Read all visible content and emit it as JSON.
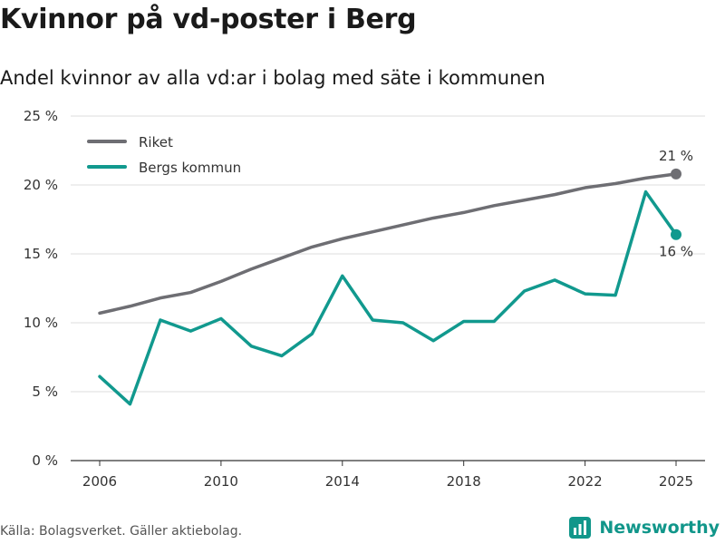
{
  "header": {
    "title": "Kvinnor på vd-poster i Berg",
    "subtitle": "Andel kvinnor av alla vd:ar i bolag med säte i kommunen"
  },
  "chart_data": {
    "type": "line",
    "x": [
      2006,
      2007,
      2008,
      2009,
      2010,
      2011,
      2012,
      2013,
      2014,
      2015,
      2016,
      2017,
      2018,
      2019,
      2020,
      2021,
      2022,
      2023,
      2024,
      2025
    ],
    "series": [
      {
        "name": "Riket",
        "color": "#6e6e73",
        "values": [
          10.7,
          11.2,
          11.8,
          12.2,
          13.0,
          13.9,
          14.7,
          15.5,
          16.1,
          16.6,
          17.1,
          17.6,
          18.0,
          18.5,
          18.9,
          19.3,
          19.8,
          20.1,
          20.5,
          20.8
        ]
      },
      {
        "name": "Bergs kommun",
        "color": "#11998e",
        "values": [
          6.1,
          4.1,
          10.2,
          9.4,
          10.3,
          8.3,
          7.6,
          9.2,
          13.4,
          10.2,
          10.0,
          8.7,
          10.1,
          10.1,
          12.3,
          13.1,
          12.1,
          12.0,
          19.5,
          16.4
        ]
      }
    ],
    "end_labels": [
      "21 %",
      "16 %"
    ],
    "xticks": [
      2006,
      2010,
      2014,
      2018,
      2022,
      2025
    ],
    "yticks": [
      0,
      5,
      10,
      15,
      20,
      25
    ],
    "ytick_labels": [
      "0 %",
      "5 %",
      "10 %",
      "15 %",
      "20 %",
      "25 %"
    ],
    "ylim": [
      0,
      25
    ],
    "xlim": [
      2006,
      2025
    ],
    "grid": true,
    "legend": "top-left"
  },
  "footer": {
    "source": "Källa: Bolagsverket. Gäller aktiebolag.",
    "brand": "Newsworthy",
    "brand_color": "#11968a"
  }
}
